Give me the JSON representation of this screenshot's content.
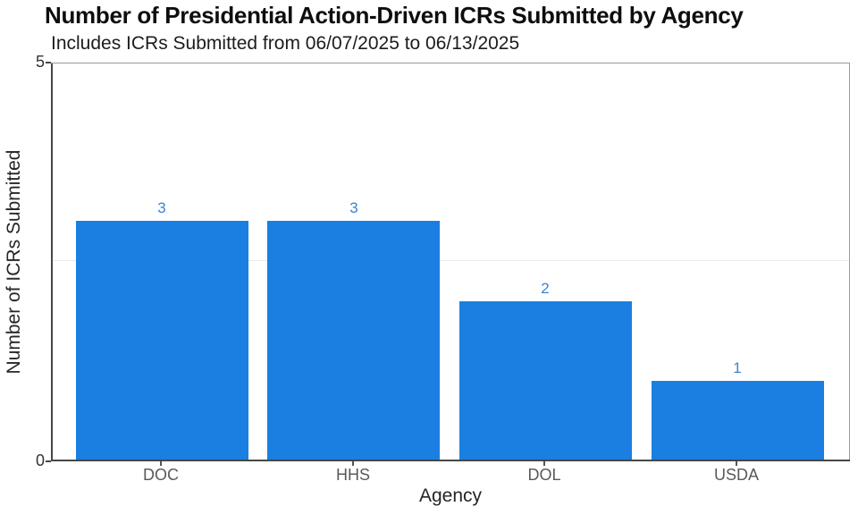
{
  "chart_data": {
    "type": "bar",
    "title": "Number of Presidential Action-Driven ICRs Submitted by Agency",
    "subtitle": "Includes ICRs Submitted from 06/07/2025 to 06/13/2025",
    "xlabel": "Agency",
    "ylabel": "Number of ICRs Submitted",
    "categories": [
      "DOC",
      "HHS",
      "DOL",
      "USDA"
    ],
    "values": [
      3,
      3,
      2,
      1
    ],
    "ylim": [
      0,
      5
    ],
    "yticks": [
      0,
      5
    ],
    "ytick_labels": [
      "0",
      "5"
    ],
    "gridlines": [
      2.5
    ],
    "grid_on": true,
    "legend": "none",
    "bar_color": "#1a7fe0",
    "value_label_color": "#3a84d6",
    "axis_line_color": "#474747",
    "plot_border_color": "#9a9a9a",
    "grid_color": "#ebebeb",
    "y_tick_label_color": "#333333",
    "x_tick_label_color": "#595959"
  }
}
